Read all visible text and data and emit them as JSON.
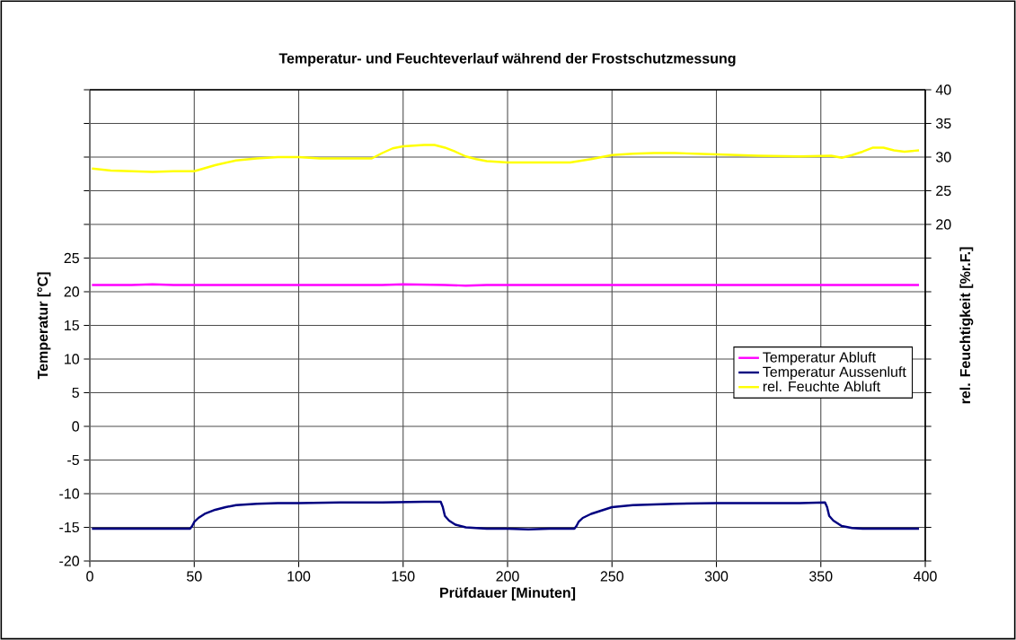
{
  "chart_data": {
    "type": "line",
    "title": "Temperatur- und Feuchteverlauf während der Frostschutzmessung",
    "xlabel": "Prüfdauer [Minuten]",
    "ylabel": "Temperatur [°C]",
    "y2label": "rel. Feuchtigkeit [%r.F.]",
    "xlim": [
      0,
      400
    ],
    "xticks": [
      0,
      50,
      100,
      150,
      200,
      250,
      300,
      350,
      400
    ],
    "ylim": [
      -20,
      50
    ],
    "yticks": [
      -20,
      -15,
      -10,
      -5,
      0,
      5,
      10,
      15,
      20,
      25,
      {
        "value": 30,
        "label": null
      },
      {
        "value": 35,
        "label": null
      },
      {
        "value": 40,
        "label": null
      },
      {
        "value": 45,
        "label": null
      },
      {
        "value": 50,
        "label": null
      }
    ],
    "y2lim": [
      -30,
      40
    ],
    "y2ticks": [
      {
        "value": -30,
        "label": null
      },
      {
        "value": -25,
        "label": null
      },
      {
        "value": -20,
        "label": null
      },
      {
        "value": -15,
        "label": null
      },
      {
        "value": -10,
        "label": null
      },
      {
        "value": -5,
        "label": null
      },
      {
        "value": 0,
        "label": null
      },
      {
        "value": 5,
        "label": null
      },
      {
        "value": 10,
        "label": null
      },
      {
        "value": 15,
        "label": null
      },
      20,
      25,
      30,
      35,
      40
    ],
    "grid": true,
    "legend": "right",
    "marker": "none",
    "line_style": "solid",
    "series": [
      {
        "name": "Temperatur Abluft",
        "color": "#ff00ff",
        "x": [
          1,
          20,
          30,
          40,
          60,
          100,
          140,
          150,
          170,
          180,
          190,
          220,
          260,
          300,
          340,
          380,
          397
        ],
        "values": [
          21.0,
          21.0,
          21.1,
          21.0,
          21.0,
          21.0,
          21.0,
          21.1,
          21.0,
          20.9,
          21.0,
          21.0,
          21.0,
          21.0,
          21.0,
          21.0,
          21.0
        ]
      },
      {
        "name": "Temperatur Aussenluft",
        "color": "#000080",
        "x": [
          1,
          10,
          20,
          30,
          40,
          48,
          49,
          50,
          52,
          55,
          60,
          65,
          70,
          80,
          90,
          100,
          120,
          140,
          160,
          168,
          169,
          170,
          172,
          175,
          180,
          190,
          200,
          210,
          220,
          230,
          232,
          233,
          234,
          236,
          240,
          245,
          250,
          260,
          270,
          280,
          300,
          320,
          340,
          352,
          353,
          354,
          356,
          360,
          365,
          370,
          380,
          390,
          397
        ],
        "values": [
          -15.2,
          -15.2,
          -15.2,
          -15.2,
          -15.2,
          -15.2,
          -14.8,
          -14.2,
          -13.6,
          -13.0,
          -12.4,
          -12.0,
          -11.7,
          -11.5,
          -11.4,
          -11.4,
          -11.3,
          -11.3,
          -11.2,
          -11.2,
          -12.0,
          -13.3,
          -14.0,
          -14.6,
          -15.0,
          -15.2,
          -15.2,
          -15.3,
          -15.2,
          -15.2,
          -15.2,
          -14.8,
          -14.2,
          -13.6,
          -13.0,
          -12.5,
          -12.0,
          -11.7,
          -11.6,
          -11.5,
          -11.4,
          -11.4,
          -11.4,
          -11.3,
          -12.0,
          -13.3,
          -14.0,
          -14.8,
          -15.1,
          -15.2,
          -15.2,
          -15.2,
          -15.2
        ]
      },
      {
        "name": "rel. Feuchte Abluft",
        "color": "#ffff00",
        "axis": "y2",
        "x": [
          1,
          10,
          20,
          30,
          40,
          48,
          50,
          60,
          70,
          80,
          90,
          100,
          110,
          120,
          135,
          140,
          145,
          150,
          160,
          165,
          170,
          175,
          180,
          185,
          190,
          200,
          215,
          230,
          240,
          250,
          260,
          270,
          280,
          290,
          300,
          320,
          340,
          355,
          360,
          365,
          370,
          375,
          380,
          385,
          390,
          397
        ],
        "values": [
          28.3,
          28.0,
          27.9,
          27.8,
          27.9,
          27.9,
          27.9,
          28.8,
          29.5,
          29.8,
          30.0,
          30.0,
          29.8,
          29.8,
          29.8,
          30.6,
          31.3,
          31.6,
          31.8,
          31.8,
          31.4,
          30.8,
          30.1,
          29.7,
          29.4,
          29.2,
          29.2,
          29.2,
          29.7,
          30.3,
          30.5,
          30.6,
          30.6,
          30.5,
          30.4,
          30.2,
          30.1,
          30.2,
          29.9,
          30.3,
          30.8,
          31.4,
          31.4,
          31.0,
          30.8,
          31.0
        ]
      }
    ]
  }
}
